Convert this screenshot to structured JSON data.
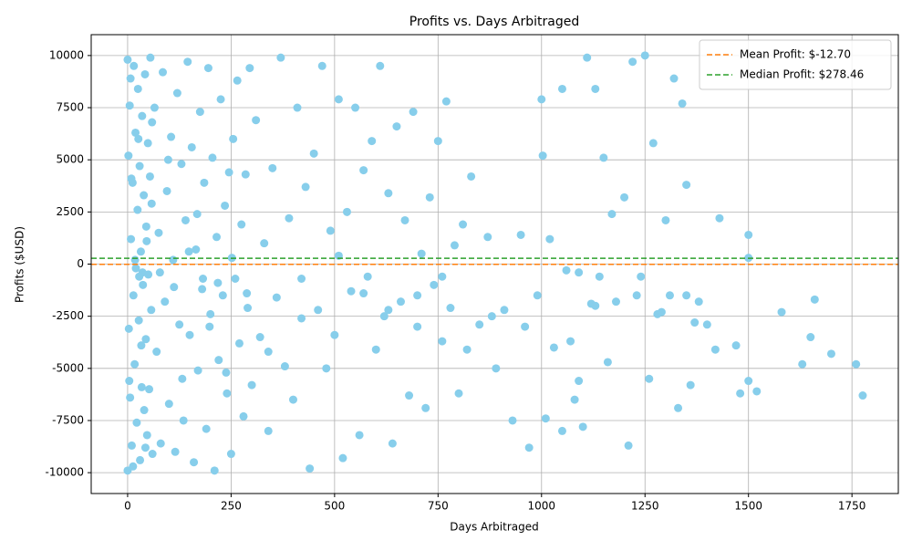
{
  "chart_data": {
    "type": "scatter",
    "title": "Profits vs. Days Arbitraged",
    "x_label": "Days Arbitraged",
    "y_label": "Profits ($USD)",
    "xlim": [
      -88,
      1862
    ],
    "ylim": [
      -11000,
      11000
    ],
    "xticks": [
      0,
      250,
      500,
      750,
      1000,
      1250,
      1500,
      1750
    ],
    "yticks": [
      -10000,
      -7500,
      -5000,
      -2500,
      0,
      2500,
      5000,
      7500,
      10000
    ],
    "grid": true,
    "legend_position": "upper right",
    "series": [
      {
        "color": "#87ceeb",
        "x": [
          0,
          0,
          2,
          3,
          5,
          6,
          8,
          10,
          12,
          14,
          15,
          17,
          19,
          20,
          22,
          24,
          25,
          27,
          29,
          30,
          32,
          34,
          35,
          37,
          39,
          40,
          42,
          44,
          45,
          47,
          49,
          50,
          52,
          54,
          55,
          57,
          59,
          60,
          13,
          7,
          18,
          28,
          36,
          46,
          9,
          33,
          4,
          26,
          43,
          58,
          65,
          70,
          75,
          80,
          85,
          90,
          95,
          100,
          105,
          110,
          115,
          120,
          125,
          130,
          135,
          140,
          145,
          150,
          155,
          160,
          165,
          170,
          175,
          180,
          185,
          190,
          195,
          200,
          205,
          210,
          215,
          220,
          225,
          230,
          235,
          240,
          245,
          250,
          255,
          260,
          265,
          270,
          275,
          280,
          285,
          290,
          295,
          300,
          78,
          112,
          148,
          182,
          218,
          252,
          288,
          98,
          132,
          168,
          198,
          238,
          310,
          320,
          330,
          340,
          350,
          360,
          370,
          380,
          390,
          400,
          410,
          420,
          430,
          440,
          450,
          460,
          470,
          480,
          490,
          500,
          510,
          520,
          530,
          540,
          550,
          560,
          570,
          580,
          590,
          600,
          610,
          620,
          630,
          640,
          650,
          660,
          670,
          680,
          690,
          700,
          710,
          720,
          730,
          740,
          750,
          760,
          770,
          780,
          790,
          800,
          810,
          820,
          830,
          850,
          870,
          890,
          910,
          930,
          950,
          970,
          990,
          340,
          420,
          510,
          570,
          630,
          700,
          760,
          880,
          960,
          1000,
          1003,
          1010,
          1020,
          1030,
          1050,
          1060,
          1070,
          1080,
          1090,
          1100,
          1110,
          1120,
          1130,
          1140,
          1150,
          1160,
          1170,
          1180,
          1200,
          1210,
          1220,
          1230,
          1250,
          1260,
          1270,
          1280,
          1300,
          1310,
          1320,
          1330,
          1340,
          1350,
          1360,
          1370,
          1380,
          1400,
          1420,
          1430,
          1050,
          1090,
          1130,
          1240,
          1350,
          1290,
          1470,
          1480,
          1500,
          1500,
          1500,
          1520,
          1580,
          1630,
          1650,
          1660,
          1700,
          1760,
          1776
        ],
        "values": [
          9800,
          -9900,
          5200,
          -3100,
          7600,
          -6400,
          1200,
          -8700,
          3900,
          -1500,
          9500,
          -4800,
          6300,
          -200,
          -7600,
          2600,
          8400,
          -2700,
          4700,
          -9400,
          600,
          -5900,
          7100,
          -1000,
          3300,
          -7000,
          9100,
          -3600,
          1800,
          -8200,
          5800,
          -500,
          -6000,
          4200,
          9900,
          -2200,
          6800,
          -9100,
          -9700,
          8900,
          200,
          -600,
          -400,
          1100,
          4100,
          -3900,
          -5600,
          6000,
          -8800,
          2900,
          7500,
          -4200,
          1500,
          -8600,
          9200,
          -1800,
          3500,
          -6700,
          6100,
          200,
          -9000,
          8200,
          -2900,
          4800,
          -7500,
          2100,
          9700,
          -3400,
          5600,
          -9500,
          700,
          -5100,
          7300,
          -1200,
          3900,
          -7900,
          9400,
          -2400,
          5100,
          -9900,
          1300,
          -4600,
          7900,
          -1500,
          2800,
          -6200,
          4400,
          -9100,
          6000,
          -700,
          8800,
          -3800,
          1900,
          -7300,
          4300,
          -2100,
          9400,
          -5800,
          -400,
          -1100,
          600,
          -700,
          -900,
          300,
          -1400,
          5000,
          -5500,
          2400,
          -3000,
          -5200,
          6900,
          -3500,
          1000,
          -8000,
          4600,
          -1600,
          9900,
          -4900,
          2200,
          -6500,
          7500,
          -700,
          3700,
          -9800,
          5300,
          -2200,
          9500,
          -5000,
          1600,
          -3400,
          7900,
          -9300,
          2500,
          -1300,
          7500,
          -8200,
          4500,
          -600,
          5900,
          -4100,
          9500,
          -2500,
          3400,
          -8600,
          6600,
          -1800,
          2100,
          -6300,
          7300,
          -3000,
          500,
          -6900,
          3200,
          -1000,
          5900,
          -3700,
          7800,
          -2100,
          900,
          -6200,
          1900,
          -4100,
          4200,
          -2900,
          1300,
          -5000,
          -2200,
          -7500,
          1400,
          -8800,
          -1500,
          -4200,
          -2600,
          400,
          -1400,
          -2200,
          -1500,
          -600,
          -2500,
          -3000,
          7900,
          5200,
          -7400,
          1200,
          -4000,
          8400,
          -300,
          -3700,
          -6500,
          -400,
          -7800,
          9900,
          -1900,
          8400,
          -600,
          5100,
          -4700,
          2400,
          -1800,
          3200,
          -8700,
          9700,
          -1500,
          10000,
          -5500,
          5800,
          -2400,
          2100,
          -1500,
          8900,
          -6900,
          7700,
          3800,
          -5800,
          -2800,
          -1800,
          -2900,
          -4100,
          2200,
          -8000,
          -5600,
          -2000,
          -600,
          -1500,
          -2300,
          -3900,
          -6200,
          1400,
          300,
          -5600,
          -6100,
          -2300,
          -4800,
          -3500,
          -1700,
          -4300,
          -4800,
          -6300
        ]
      }
    ],
    "reference_lines": [
      {
        "label": "Mean Profit: $-12.70",
        "value": -12.7,
        "color": "#ff7f0e"
      },
      {
        "label": "Median Profit: $278.46",
        "value": 278.46,
        "color": "#2ca02c"
      }
    ]
  }
}
